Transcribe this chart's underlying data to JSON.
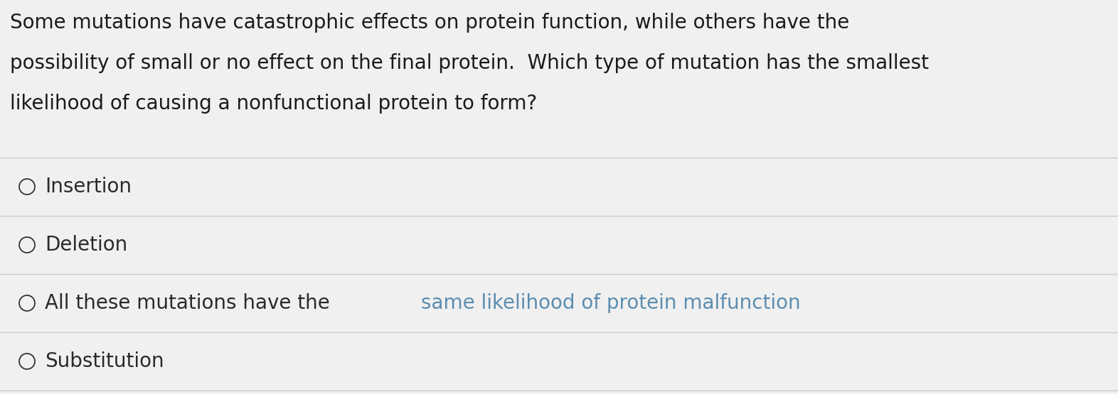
{
  "background_color": "#f0f0f0",
  "question_lines": [
    "Some mutations have catastrophic effects on protein function, while others have the",
    "possibility of small or no effect on the final protein.  Which type of mutation has the smallest",
    "likelihood of causing a nonfunctional protein to form?"
  ],
  "options": [
    "Insertion",
    "Deletion",
    "All these mutations have the same likelihood of protein malfunction",
    "Substitution"
  ],
  "option3_plain": "All these mutations have the ",
  "option3_highlight": "same likelihood of protein malfunction",
  "option_text_color": "#2a2a2a",
  "question_text_color": "#1a1a1a",
  "highlight_color": "#5b8db0",
  "divider_color": "#c8c8c8",
  "circle_color": "#333333",
  "question_font_size": 20,
  "option_font_size": 20,
  "figsize": [
    15.72,
    5.55
  ],
  "dpi": 100
}
